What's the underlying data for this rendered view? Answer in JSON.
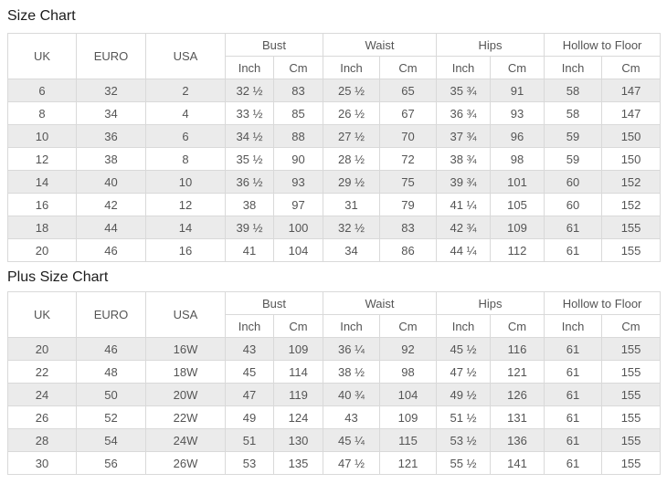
{
  "colors": {
    "stripe_row": "#ebebeb",
    "border": "#d9d9d9",
    "cell_text": "#555555",
    "title_text": "#1c1c1c"
  },
  "tables": [
    {
      "title": "Size Chart",
      "headers": {
        "uk": "UK",
        "euro": "EURO",
        "usa": "USA",
        "bust": "Bust",
        "waist": "Waist",
        "hips": "Hips",
        "hollow": "Hollow to Floor",
        "inch": "Inch",
        "cm": "Cm"
      },
      "rows": [
        [
          "6",
          "32",
          "2",
          "32 ½",
          "83",
          "25 ½",
          "65",
          "35 ¾",
          "91",
          "58",
          "147"
        ],
        [
          "8",
          "34",
          "4",
          "33 ½",
          "85",
          "26 ½",
          "67",
          "36 ¾",
          "93",
          "58",
          "147"
        ],
        [
          "10",
          "36",
          "6",
          "34 ½",
          "88",
          "27 ½",
          "70",
          "37 ¾",
          "96",
          "59",
          "150"
        ],
        [
          "12",
          "38",
          "8",
          "35 ½",
          "90",
          "28 ½",
          "72",
          "38 ¾",
          "98",
          "59",
          "150"
        ],
        [
          "14",
          "40",
          "10",
          "36 ½",
          "93",
          "29 ½",
          "75",
          "39 ¾",
          "101",
          "60",
          "152"
        ],
        [
          "16",
          "42",
          "12",
          "38",
          "97",
          "31",
          "79",
          "41 ¼",
          "105",
          "60",
          "152"
        ],
        [
          "18",
          "44",
          "14",
          "39 ½",
          "100",
          "32 ½",
          "83",
          "42 ¾",
          "109",
          "61",
          "155"
        ],
        [
          "20",
          "46",
          "16",
          "41",
          "104",
          "34",
          "86",
          "44 ¼",
          "112",
          "61",
          "155"
        ]
      ]
    },
    {
      "title": "Plus Size Chart",
      "headers": {
        "uk": "UK",
        "euro": "EURO",
        "usa": "USA",
        "bust": "Bust",
        "waist": "Waist",
        "hips": "Hips",
        "hollow": "Hollow to Floor",
        "inch": "Inch",
        "cm": "Cm"
      },
      "rows": [
        [
          "20",
          "46",
          "16W",
          "43",
          "109",
          "36 ¼",
          "92",
          "45 ½",
          "116",
          "61",
          "155"
        ],
        [
          "22",
          "48",
          "18W",
          "45",
          "114",
          "38 ½",
          "98",
          "47 ½",
          "121",
          "61",
          "155"
        ],
        [
          "24",
          "50",
          "20W",
          "47",
          "119",
          "40 ¾",
          "104",
          "49 ½",
          "126",
          "61",
          "155"
        ],
        [
          "26",
          "52",
          "22W",
          "49",
          "124",
          "43",
          "109",
          "51 ½",
          "131",
          "61",
          "155"
        ],
        [
          "28",
          "54",
          "24W",
          "51",
          "130",
          "45 ¼",
          "115",
          "53 ½",
          "136",
          "61",
          "155"
        ],
        [
          "30",
          "56",
          "26W",
          "53",
          "135",
          "47 ½",
          "121",
          "55 ½",
          "141",
          "61",
          "155"
        ]
      ]
    }
  ]
}
